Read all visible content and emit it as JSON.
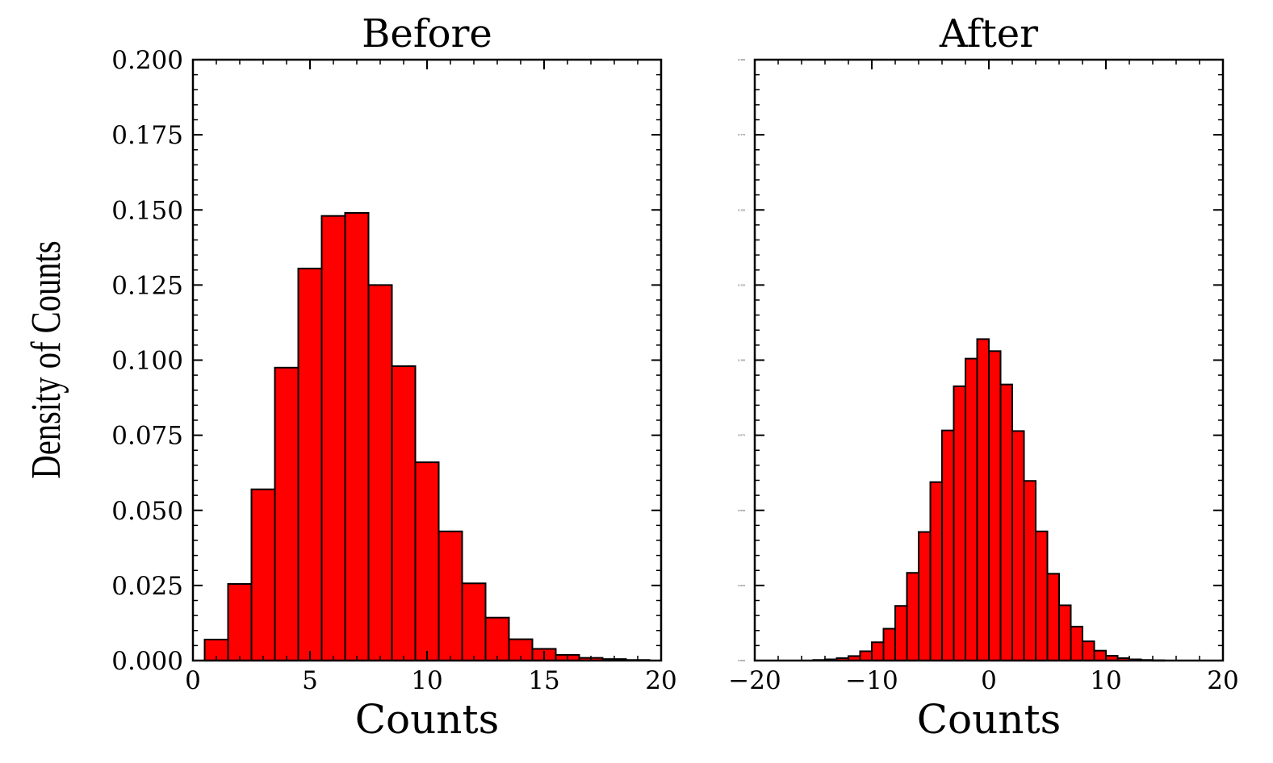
{
  "figure": {
    "ylabel": "Density of Counts"
  },
  "chart_data": [
    {
      "type": "bar",
      "title": "Before",
      "xlabel": "Counts",
      "ylabel": "Density of Counts",
      "xlim": [
        0,
        20
      ],
      "ylim": [
        0,
        0.2
      ],
      "xticks": [
        0,
        5,
        10,
        15,
        20
      ],
      "xtick_labels": [
        "0",
        "5",
        "10",
        "15",
        "20"
      ],
      "yticks": [
        0,
        0.025,
        0.05,
        0.075,
        0.1,
        0.125,
        0.15,
        0.175,
        0.2
      ],
      "ytick_labels": [
        "0.000",
        "0.025",
        "0.050",
        "0.075",
        "0.100",
        "0.125",
        "0.150",
        "0.175",
        "0.200"
      ],
      "bin_edges": [
        0.5,
        1.5,
        2.5,
        3.5,
        4.5,
        5.5,
        6.5,
        7.5,
        8.5,
        9.5,
        10.5,
        11.5,
        12.5,
        13.5,
        14.5,
        15.5,
        16.5,
        17.5,
        18.5,
        19.5
      ],
      "values": [
        0.007,
        0.0255,
        0.057,
        0.0975,
        0.1305,
        0.148,
        0.149,
        0.125,
        0.098,
        0.066,
        0.043,
        0.0257,
        0.0143,
        0.0071,
        0.0039,
        0.0019,
        0.0009,
        0.0005,
        0.0002
      ],
      "bar_color": "#ff0000",
      "edge_color": "#000000",
      "grid": false
    },
    {
      "type": "bar",
      "title": "After",
      "xlabel": "Counts",
      "ylabel": "",
      "xlim": [
        -20,
        20
      ],
      "ylim": [
        0,
        0.2
      ],
      "xticks": [
        -20,
        -10,
        0,
        10,
        20
      ],
      "xtick_labels": [
        "−20",
        "−10",
        "0",
        "10",
        "20"
      ],
      "yticks": [
        0,
        0.025,
        0.05,
        0.075,
        0.1,
        0.125,
        0.15,
        0.175,
        0.2
      ],
      "ytick_labels": [
        "0.000",
        "0.025",
        "0.050",
        "0.075",
        "0.100",
        "0.125",
        "0.150",
        "0.175",
        "0.200"
      ],
      "bin_edges": [
        -15.0,
        -14.0,
        -13.0,
        -12.0,
        -11.0,
        -10.0,
        -9.0,
        -8.0,
        -7.0,
        -6.0,
        -5.0,
        -4.0,
        -3.0,
        -2.0,
        -1.0,
        0.0,
        1.0,
        2.0,
        3.0,
        4.0,
        5.0,
        6.0,
        7.0,
        8.0,
        9.0,
        10.0,
        11.0,
        12.0,
        13.0,
        14.0,
        15.0
      ],
      "values": [
        0.0002,
        0.0004,
        0.0008,
        0.0015,
        0.0031,
        0.0061,
        0.0106,
        0.0182,
        0.0292,
        0.0428,
        0.0594,
        0.0766,
        0.0913,
        0.1005,
        0.107,
        0.103,
        0.0919,
        0.0764,
        0.0598,
        0.043,
        0.0289,
        0.0184,
        0.0113,
        0.0064,
        0.0033,
        0.0016,
        0.0008,
        0.0004,
        0.0002,
        0.0001
      ],
      "bar_color": "#ff0000",
      "edge_color": "#000000",
      "grid": false
    }
  ]
}
